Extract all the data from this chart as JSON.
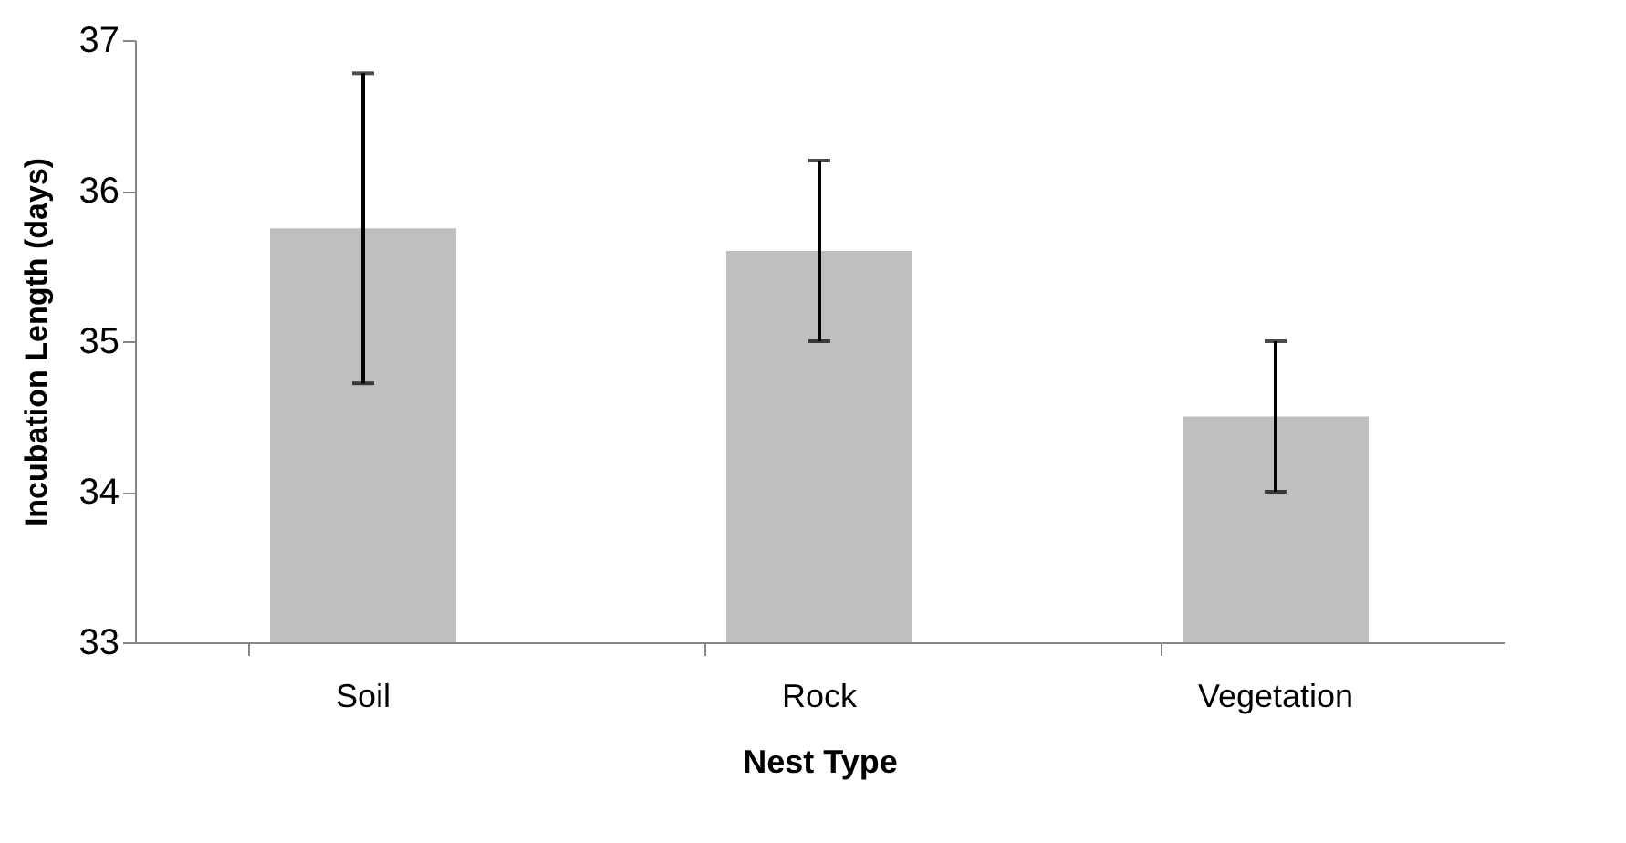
{
  "chart_data": {
    "type": "bar",
    "xlabel": "Nest Type",
    "ylabel": "Incubation Length (days)",
    "categories": [
      "Soil",
      "Rock",
      "Vegetation"
    ],
    "values": [
      35.75,
      35.6,
      34.5
    ],
    "errors": [
      1.03,
      0.6,
      0.5
    ],
    "color": "#bfbfbf",
    "ylim": [
      33,
      37
    ],
    "yticks": [
      33,
      34,
      35,
      36,
      37
    ],
    "grid": false
  }
}
